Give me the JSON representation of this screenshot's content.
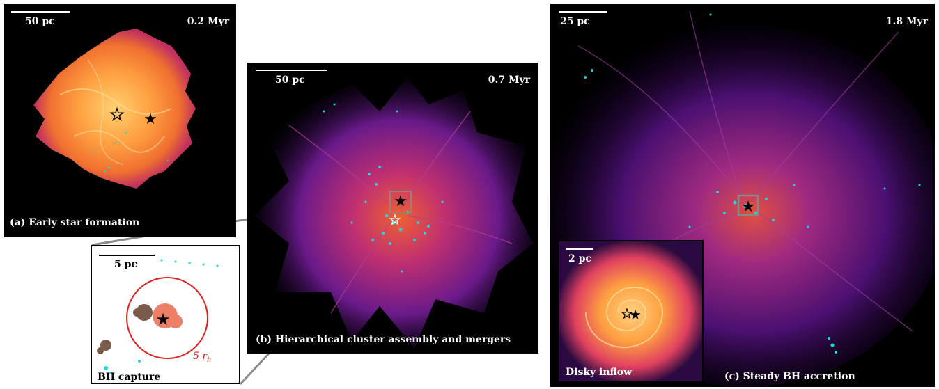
{
  "panels": {
    "a": {
      "time": "0.2 Myr",
      "scale": "50 pc",
      "caption": "(a) Early star formation"
    },
    "b": {
      "time": "0.7 Myr",
      "scale": "50 pc",
      "caption": "(b) Hierarchical cluster assembly and mergers"
    },
    "c": {
      "time": "1.8 Myr",
      "scale": "25 pc",
      "caption": "(c) Steady BH accretion"
    },
    "capture": {
      "scale": "5 pc",
      "caption": "BH capture",
      "radius_label": "5 r",
      "radius_sub": "h"
    },
    "inflow": {
      "scale": "2 pc",
      "caption": "Disky inflow"
    }
  },
  "colors": {
    "gas_hot": "#ffb347",
    "gas_mid": "#e0483a",
    "gas_cool": "#7a1f9c",
    "stars": "#22d3e0",
    "capture_ring": "#e02020",
    "connector": "#888888"
  },
  "icons": [
    "open-star-icon",
    "filled-star-icon"
  ]
}
